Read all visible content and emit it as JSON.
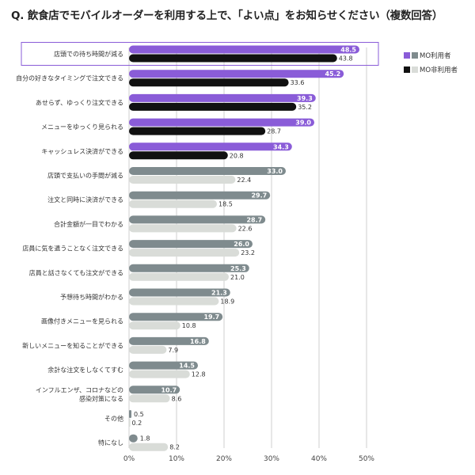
{
  "title": "Q. 飲食店でモバイルオーダーを利用する上で、「よい点」をお知らせください（複数回答）",
  "colors": {
    "mo_top": "#8a5cd8",
    "non_top": "#111111",
    "mo_rest": "#7f8b8e",
    "non_rest": "#d9dcd8",
    "highlight_border": "#8a5cd8",
    "axis_line": "#cfcfcf"
  },
  "legend": {
    "mo_label": "MO利用者",
    "non_label": "MO非利用者",
    "placement": "top-right"
  },
  "chart_data": {
    "type": "bar",
    "orientation": "horizontal",
    "title": "Q. 飲食店でモバイルオーダーを利用する上で、「よい点」をお知らせください（複数回答）",
    "xlabel": "",
    "ylabel": "",
    "xlim": [
      0,
      50
    ],
    "x_ticks": [
      "0%",
      "10%",
      "20%",
      "30%",
      "40%",
      "50%"
    ],
    "highlighted_top_n": 5,
    "highlighted_category_box": "店頭での待ち時間が減る",
    "categories": [
      "店頭での待ち時間が減る",
      "自分の好きなタイミングで注文できる",
      "あせらず、ゆっくり注文できる",
      "メニューをゆっくり見られる",
      "キャッシュレス決済ができる",
      "店頭で支払いの手間が減る",
      "注文と同時に決済ができる",
      "合計金額が一目でわかる",
      "店員に気を遣うことなく注文できる",
      "店員と話さなくても注文ができる",
      "予想待ち時間がわかる",
      "画像付きメニューを見られる",
      "新しいメニューを知ることができる",
      "余計な注文をしなくてすむ",
      "インフルエンザ、コロナなどの\n感染対策になる",
      "その他",
      "特になし"
    ],
    "series": [
      {
        "name": "MO利用者",
        "values": [
          48.5,
          45.2,
          39.3,
          39.0,
          34.3,
          33.0,
          29.7,
          28.7,
          26.0,
          25.3,
          21.3,
          19.7,
          16.8,
          14.5,
          10.7,
          0.5,
          1.8
        ],
        "labels": [
          "48.5",
          "45.2",
          "39.3",
          "39.0",
          "34.3",
          "33.0",
          "29.7",
          "28.7",
          "26.0",
          "25.3",
          "21.3",
          "19.7",
          "16.8",
          "14.5",
          "10.7",
          "0.5",
          "1.8"
        ]
      },
      {
        "name": "MO非利用者",
        "values": [
          43.8,
          33.6,
          35.2,
          28.7,
          20.8,
          22.4,
          18.5,
          22.6,
          23.2,
          21.0,
          18.9,
          10.8,
          7.9,
          12.8,
          8.6,
          0.2,
          8.2
        ],
        "labels": [
          "43.8",
          "33.6",
          "35.2",
          "28.7",
          "20.8",
          "22.4",
          "18.5",
          "22.6",
          "23.2",
          "21.0",
          "18.9",
          "10.8",
          "7.9",
          "12.8",
          "8.6",
          "0.2",
          "8.2"
        ]
      }
    ]
  }
}
